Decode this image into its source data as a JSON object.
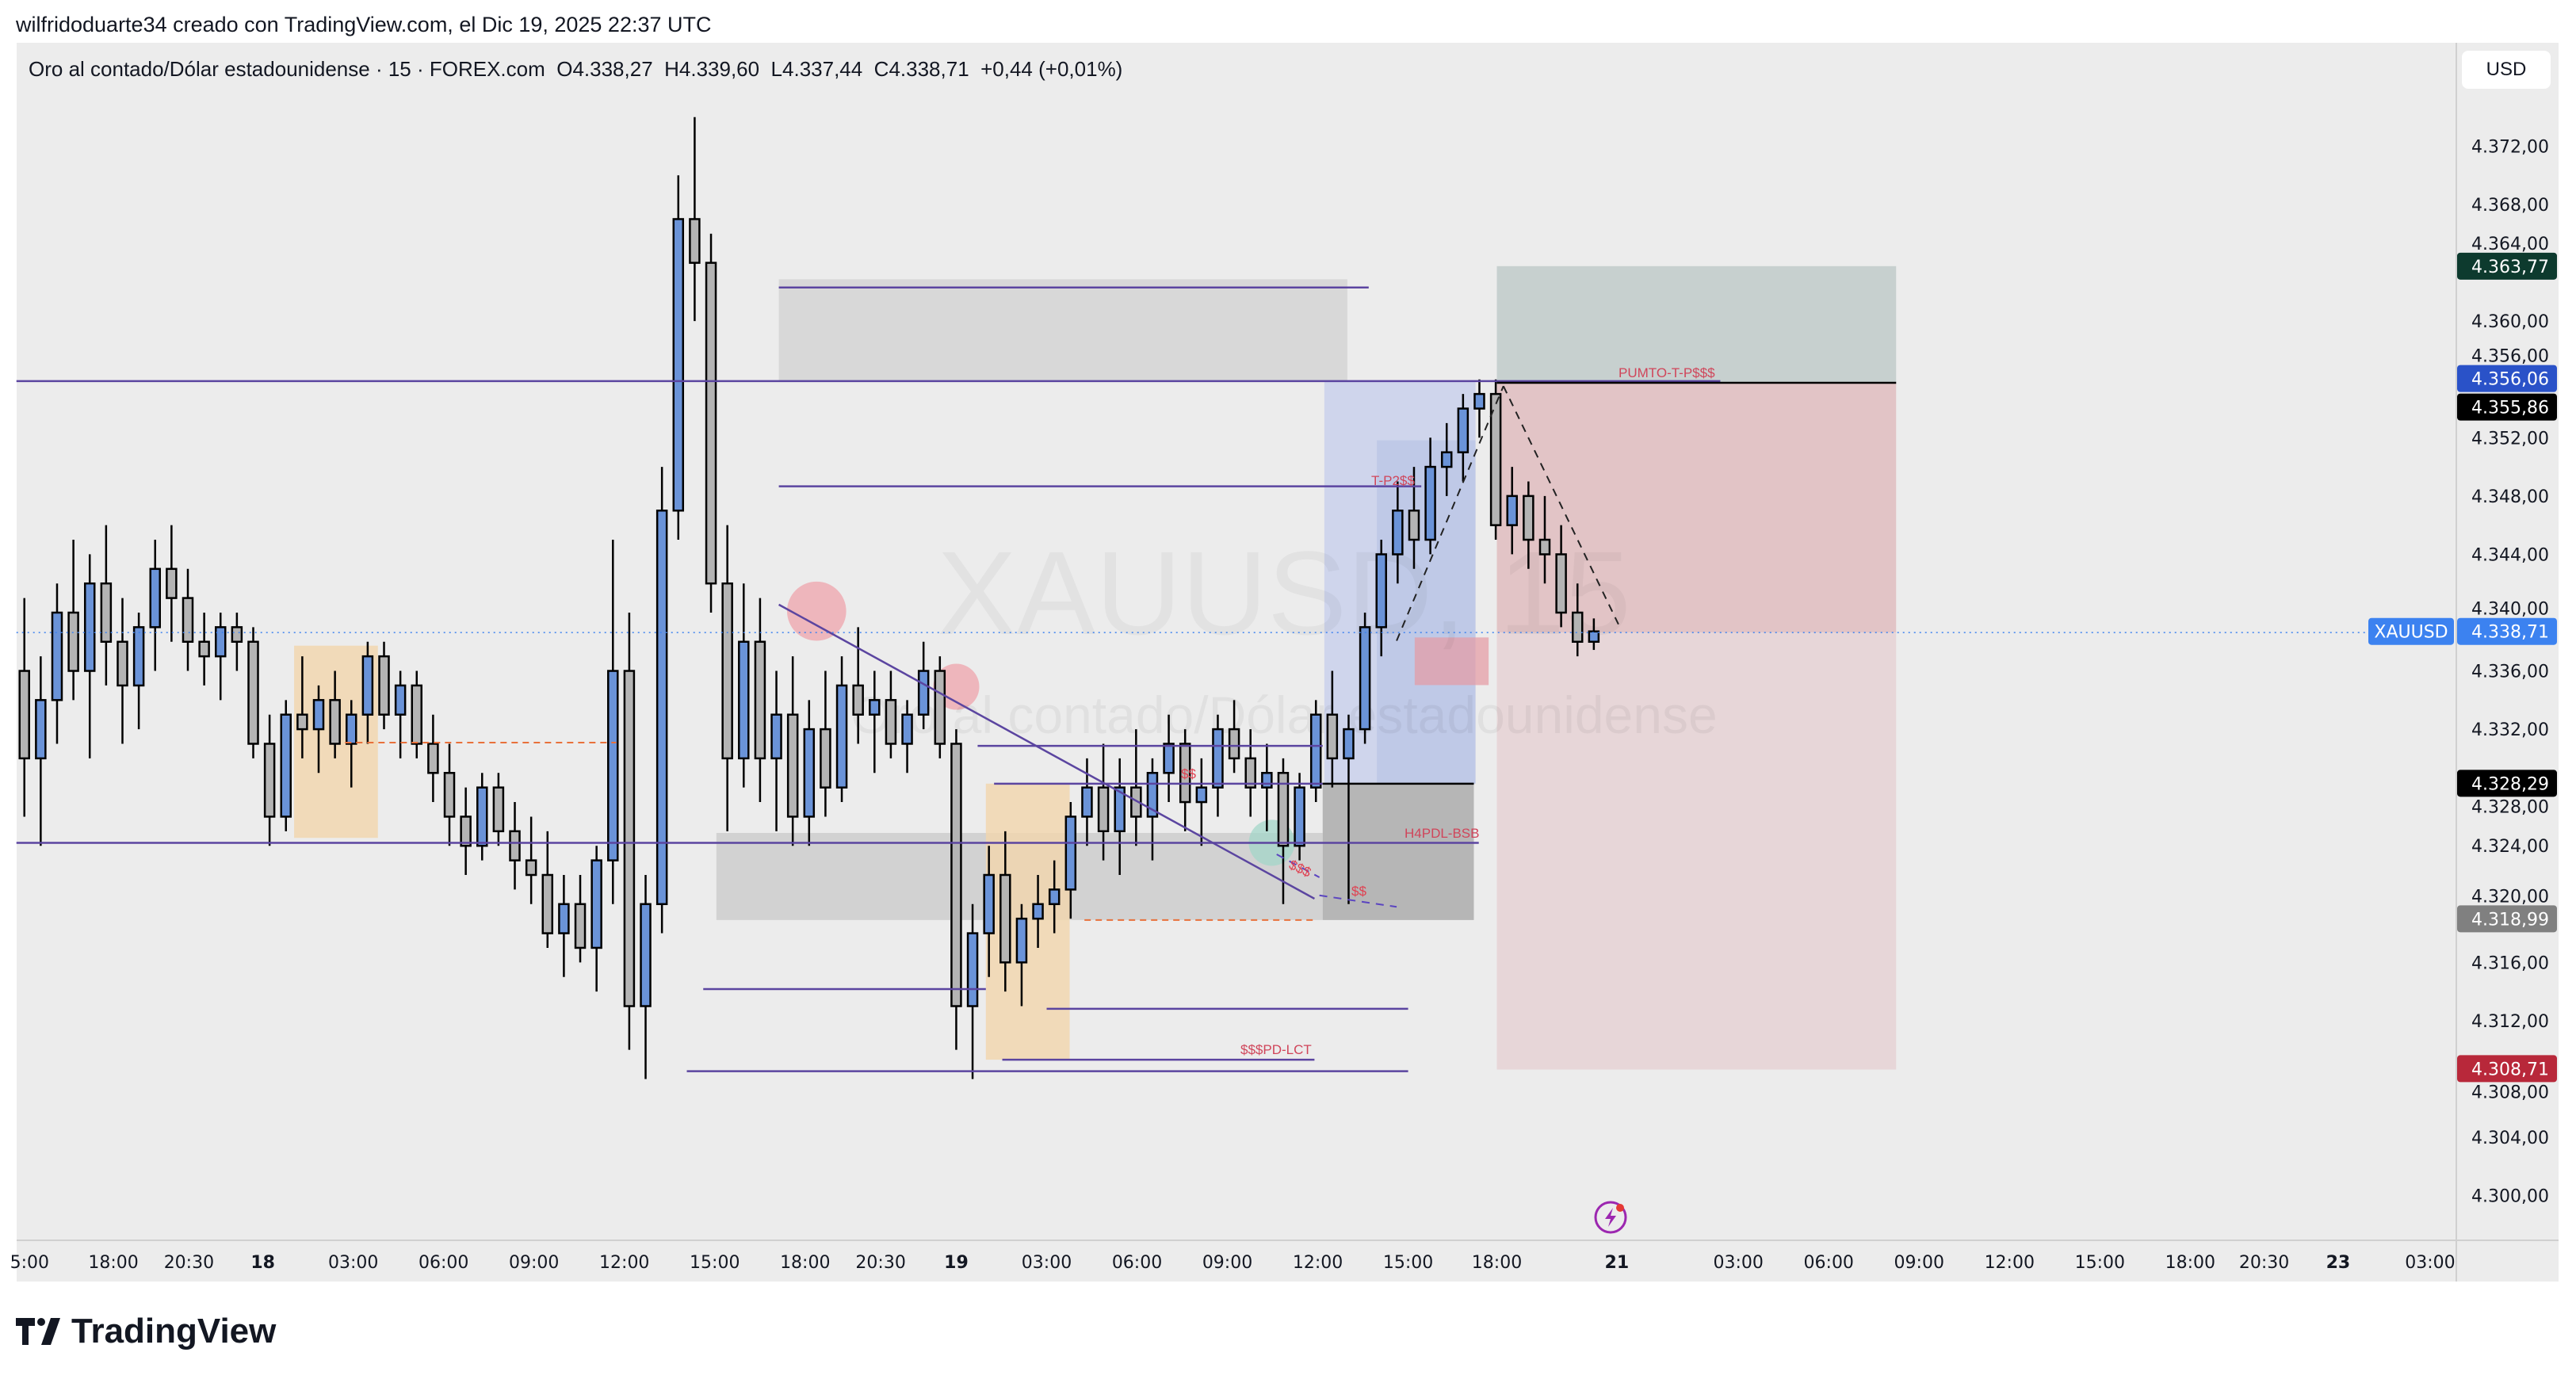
{
  "credit": "wilfridoduarte34 creado con TradingView.com, el Dic 19, 2025 22:37 UTC",
  "legend": {
    "symbol_name": "Oro al contado/Dólar estadounidense · 15 · FOREX.com",
    "open": "O4.338,27",
    "high": "H4.339,60",
    "low": "L4.337,44",
    "close": "C4.338,71",
    "change": "+0,44 (+0,01%)"
  },
  "currency_button": "USD",
  "watermark": {
    "symbol": "XAUUSD, 15",
    "name": "Oro al contado/Dólar estadounidense"
  },
  "logo_text": "TradingView",
  "colors": {
    "up_body": "#6a93d8",
    "down_body": "#b4b4b4",
    "last_price": "#3c82f0",
    "tp": "#0d3a2e",
    "sl": "#b8283a",
    "drawing_line": "#5b45a0",
    "label_text": "#d0455a"
  },
  "annotations": {
    "tp2": "T-P2$$",
    "pumto": "PUMTO-T-P$$$",
    "dollar_a": "$$",
    "h4pdl": "H4PDL-BSB",
    "dollar_b": "$$$",
    "dollar_c": "$$",
    "pdlct": "$$$PD-LCT"
  },
  "chart_data": {
    "type": "candlestick",
    "title": "",
    "ylim": [
      4297,
      4380
    ],
    "y_ticks": [
      "4.372,00",
      "4.368,00",
      "4.364,00",
      "4.360,00",
      "4.356,00",
      "4.352,00",
      "4.348,00",
      "4.344,00",
      "4.340,00",
      "4.336,00",
      "4.332,00",
      "4.328,00",
      "4.324,00",
      "4.320,00",
      "4.316,00",
      "4.312,00",
      "4.308,00",
      "4.304,00",
      "4.300,00"
    ],
    "y_tick_values": [
      4372,
      4368,
      4364,
      4360,
      4356,
      4352,
      4348,
      4344,
      4340,
      4336,
      4332,
      4328,
      4324,
      4320,
      4316,
      4312,
      4308,
      4304,
      4300
    ],
    "x_ticks": [
      "5:00",
      "18:00",
      "20:30",
      "18",
      "03:00",
      "06:00",
      "09:00",
      "12:00",
      "15:00",
      "18:00",
      "20:30",
      "19",
      "03:00",
      "06:00",
      "09:00",
      "12:00",
      "15:00",
      "18:00",
      "21",
      "03:00",
      "06:00",
      "09:00",
      "12:00",
      "15:00",
      "18:00",
      "20:30",
      "23",
      "03:00"
    ],
    "price_labels": [
      {
        "value": 4363.77,
        "text": "4.363,77",
        "color": "#0d3a2e"
      },
      {
        "value": 4356.06,
        "text": "4.356,06",
        "color": "#2a52c8"
      },
      {
        "value": 4355.86,
        "text": "4.355,86",
        "color": "#000000"
      },
      {
        "value": 4338.71,
        "text": "4.338,71",
        "color": "#3c82f0",
        "tag": "XAUUSD"
      },
      {
        "value": 4328.29,
        "text": "4.328,29",
        "color": "#000000"
      },
      {
        "value": 4318.99,
        "text": "4.318,99",
        "color": "#808080"
      },
      {
        "value": 4308.71,
        "text": "4.308,71",
        "color": "#b8283a"
      }
    ],
    "ohlc": [
      [
        4336,
        4341,
        4326,
        4330
      ],
      [
        4330,
        4337,
        4324,
        4334
      ],
      [
        4334,
        4342,
        4331,
        4340
      ],
      [
        4340,
        4345,
        4334,
        4336
      ],
      [
        4336,
        4344,
        4330,
        4342
      ],
      [
        4342,
        4346,
        4335,
        4338
      ],
      [
        4338,
        4341,
        4331,
        4335
      ],
      [
        4335,
        4340,
        4332,
        4339
      ],
      [
        4339,
        4345,
        4336,
        4343
      ],
      [
        4343,
        4346,
        4338,
        4341
      ],
      [
        4341,
        4343,
        4336,
        4338
      ],
      [
        4338,
        4340,
        4335,
        4337
      ],
      [
        4337,
        4340,
        4334,
        4339
      ],
      [
        4339,
        4340,
        4336,
        4338
      ],
      [
        4338,
        4339,
        4330,
        4331
      ],
      [
        4331,
        4333,
        4324,
        4326
      ],
      [
        4326,
        4334,
        4325,
        4333
      ],
      [
        4333,
        4337,
        4330,
        4332
      ],
      [
        4332,
        4335,
        4329,
        4334
      ],
      [
        4334,
        4336,
        4330,
        4331
      ],
      [
        4331,
        4334,
        4328,
        4333
      ],
      [
        4333,
        4338,
        4331,
        4337
      ],
      [
        4337,
        4338,
        4332,
        4333
      ],
      [
        4333,
        4336,
        4330,
        4335
      ],
      [
        4335,
        4336,
        4330,
        4331
      ],
      [
        4331,
        4333,
        4327,
        4329
      ],
      [
        4329,
        4331,
        4324,
        4326
      ],
      [
        4326,
        4328,
        4322,
        4324
      ],
      [
        4324,
        4329,
        4323,
        4328
      ],
      [
        4328,
        4329,
        4324,
        4325
      ],
      [
        4325,
        4327,
        4321,
        4323
      ],
      [
        4323,
        4326,
        4320,
        4322
      ],
      [
        4322,
        4325,
        4317,
        4318
      ],
      [
        4318,
        4322,
        4315,
        4320
      ],
      [
        4320,
        4322,
        4316,
        4317
      ],
      [
        4317,
        4324,
        4314,
        4323
      ],
      [
        4323,
        4345,
        4320,
        4336
      ],
      [
        4336,
        4340,
        4310,
        4313
      ],
      [
        4313,
        4322,
        4308,
        4320
      ],
      [
        4320,
        4350,
        4318,
        4347
      ],
      [
        4347,
        4370,
        4345,
        4367
      ],
      [
        4367,
        4374,
        4360,
        4364
      ],
      [
        4364,
        4366,
        4340,
        4342
      ],
      [
        4342,
        4346,
        4325,
        4330
      ],
      [
        4330,
        4342,
        4328,
        4338
      ],
      [
        4338,
        4341,
        4327,
        4330
      ],
      [
        4330,
        4336,
        4325,
        4333
      ],
      [
        4333,
        4337,
        4324,
        4326
      ],
      [
        4326,
        4334,
        4324,
        4332
      ],
      [
        4332,
        4336,
        4326,
        4328
      ],
      [
        4328,
        4337,
        4327,
        4335
      ],
      [
        4335,
        4339,
        4331,
        4333
      ],
      [
        4333,
        4336,
        4329,
        4334
      ],
      [
        4334,
        4336,
        4330,
        4331
      ],
      [
        4331,
        4334,
        4329,
        4333
      ],
      [
        4333,
        4338,
        4332,
        4336
      ],
      [
        4336,
        4337,
        4330,
        4331
      ],
      [
        4331,
        4332,
        4310,
        4313
      ],
      [
        4313,
        4320,
        4308,
        4318
      ],
      [
        4318,
        4324,
        4315,
        4322
      ],
      [
        4322,
        4325,
        4314,
        4316
      ],
      [
        4316,
        4320,
        4313,
        4319
      ],
      [
        4319,
        4322,
        4317,
        4320
      ],
      [
        4320,
        4323,
        4318,
        4321
      ],
      [
        4321,
        4327,
        4319,
        4326
      ],
      [
        4326,
        4330,
        4324,
        4328
      ],
      [
        4328,
        4331,
        4323,
        4325
      ],
      [
        4325,
        4330,
        4322,
        4328
      ],
      [
        4328,
        4332,
        4324,
        4326
      ],
      [
        4326,
        4330,
        4323,
        4329
      ],
      [
        4329,
        4333,
        4327,
        4331
      ],
      [
        4331,
        4332,
        4325,
        4327
      ],
      [
        4327,
        4330,
        4324,
        4328
      ],
      [
        4328,
        4333,
        4326,
        4332
      ],
      [
        4332,
        4334,
        4329,
        4330
      ],
      [
        4330,
        4332,
        4326,
        4328
      ],
      [
        4328,
        4331,
        4325,
        4329
      ],
      [
        4329,
        4330,
        4320,
        4324
      ],
      [
        4324,
        4329,
        4323,
        4328
      ],
      [
        4328,
        4334,
        4327,
        4333
      ],
      [
        4333,
        4336,
        4328,
        4330
      ],
      [
        4330,
        4333,
        4320,
        4332
      ],
      [
        4332,
        4340,
        4331,
        4339
      ],
      [
        4339,
        4345,
        4337,
        4344
      ],
      [
        4344,
        4349,
        4342,
        4347
      ],
      [
        4347,
        4350,
        4343,
        4345
      ],
      [
        4345,
        4352,
        4344,
        4350
      ],
      [
        4350,
        4353,
        4348,
        4351
      ],
      [
        4351,
        4355,
        4349,
        4354
      ],
      [
        4354,
        4356,
        4352,
        4355
      ],
      [
        4355,
        4356,
        4345,
        4346
      ],
      [
        4346,
        4350,
        4344,
        4348
      ],
      [
        4348,
        4349,
        4343,
        4345
      ],
      [
        4345,
        4348,
        4342,
        4344
      ],
      [
        4344,
        4346,
        4339,
        4340
      ],
      [
        4340,
        4342,
        4337,
        4338
      ],
      [
        4338,
        4339.6,
        4337.44,
        4338.71
      ]
    ]
  }
}
